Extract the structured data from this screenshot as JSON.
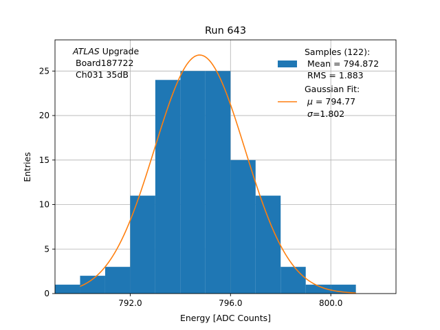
{
  "chart_data": {
    "type": "bar",
    "title": "Run 643",
    "xlabel": "Energy [ADC Counts]",
    "ylabel": "Entries",
    "xlim": [
      789.0,
      802.6
    ],
    "ylim": [
      0,
      28.5
    ],
    "xticks": [
      792.0,
      796.0,
      800.0
    ],
    "xtick_labels": [
      "792.0",
      "796.0",
      "800.0"
    ],
    "yticks": [
      0,
      5,
      10,
      15,
      20,
      25
    ],
    "ytick_labels": [
      "0",
      "5",
      "10",
      "15",
      "20",
      "25"
    ],
    "grid": true,
    "bin_edges": [
      789.0,
      790.0,
      791.0,
      792.0,
      793.0,
      794.0,
      795.0,
      796.0,
      797.0,
      798.0,
      799.0,
      800.0,
      801.0
    ],
    "counts": [
      1,
      2,
      3,
      11,
      24,
      25,
      25,
      15,
      11,
      3,
      1,
      1
    ],
    "bar_color": "#1f77b4",
    "fit_color": "#ff7f0e",
    "fit": {
      "mu": 794.77,
      "sigma": 1.802,
      "amplitude": 26.8,
      "x_range": [
        790.0,
        801.0
      ]
    },
    "annotation": {
      "experiment": "ATLAS",
      "line1_rest": " Upgrade",
      "line2": "Board187722",
      "line3": "Ch031 35dB"
    },
    "legend": {
      "position": "upper-right",
      "samples_title": "Samples (122):",
      "samples_mean": "Mean = 794.872",
      "samples_rms": "RMS = 1.883",
      "fit_title": "Gaussian Fit:",
      "fit_mu_symbol": "μ",
      "fit_mu_value": " = 794.77",
      "fit_sigma_symbol": "σ",
      "fit_sigma_value": "=1.802"
    }
  }
}
